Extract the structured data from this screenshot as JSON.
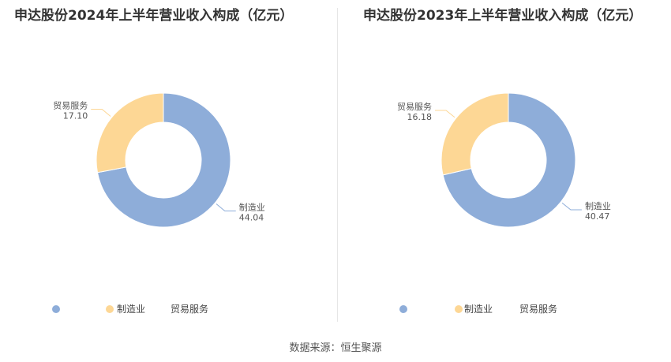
{
  "footer": {
    "source": "数据来源：恒生聚源"
  },
  "chart_data": [
    {
      "type": "pie",
      "title": "申达股份2024年上半年营业收入构成（亿元）",
      "categories": [
        "制造业",
        "贸易服务"
      ],
      "values": [
        44.04,
        17.1
      ],
      "value_labels": [
        "44.04",
        "17.10"
      ],
      "colors": [
        "#8eadd9",
        "#fdd795"
      ],
      "legend_position": "bottom"
    },
    {
      "type": "pie",
      "title": "申达股份2023年上半年营业收入构成（亿元）",
      "categories": [
        "制造业",
        "贸易服务"
      ],
      "values": [
        40.47,
        16.18
      ],
      "value_labels": [
        "40.47",
        "16.18"
      ],
      "colors": [
        "#8eadd9",
        "#fdd795"
      ],
      "legend_position": "bottom"
    }
  ]
}
